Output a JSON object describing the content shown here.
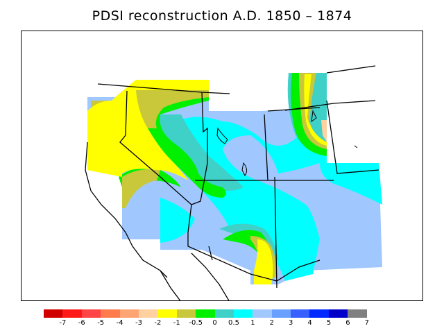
{
  "title": "PDSI reconstruction A.D. 1850 – 1874",
  "colorbar": {
    "colors": [
      "#d00000",
      "#ff1a1a",
      "#ff4545",
      "#ff7b4b",
      "#ffa473",
      "#ffd1a0",
      "#ffff00",
      "#c8c83a",
      "#00f000",
      "#3fd0c8",
      "#00ffff",
      "#a0c8ff",
      "#6aa0ff",
      "#3860ff",
      "#0028ff",
      "#0000c8",
      "#808080"
    ],
    "labels": [
      "-7",
      "-6",
      "-5",
      "-4",
      "-3",
      "-2",
      "-1",
      "-0.5",
      "0",
      "0.5",
      "1",
      "2",
      "3",
      "4",
      "5",
      "6",
      "7"
    ]
  }
}
